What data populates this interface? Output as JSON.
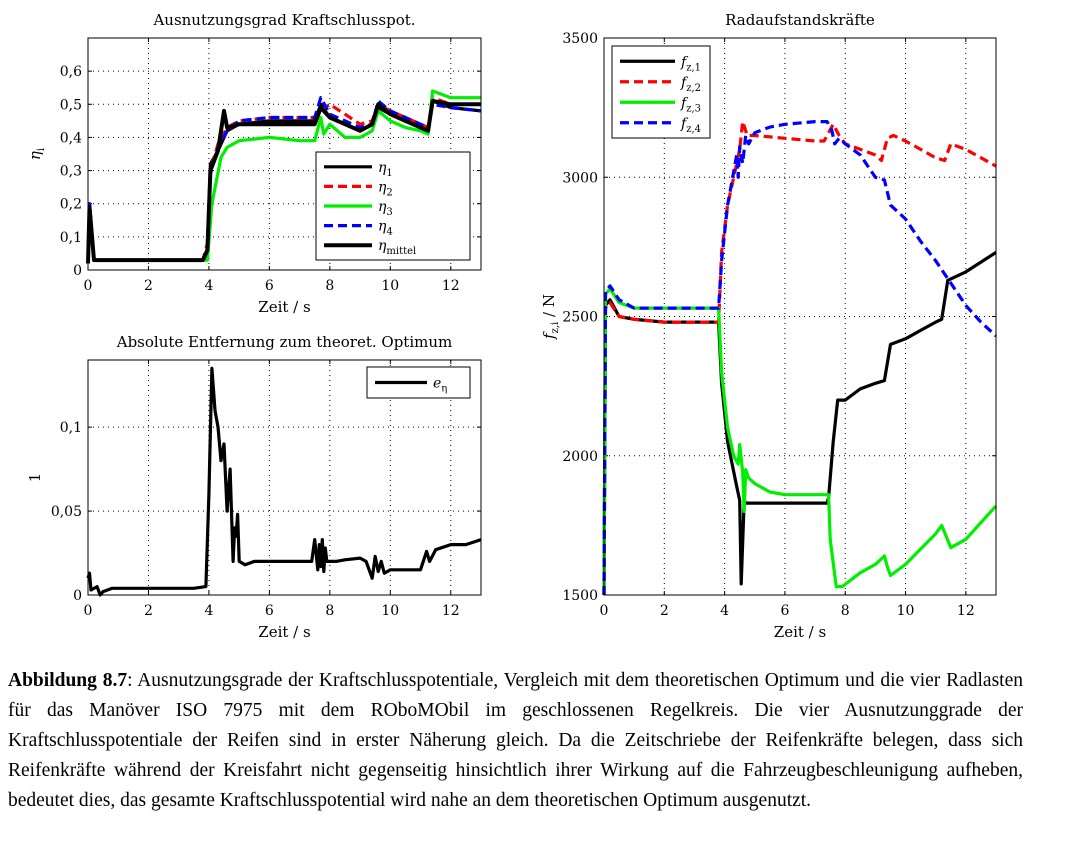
{
  "chart_data": [
    {
      "id": "eta",
      "type": "line",
      "title": "Ausnutzungsgrad Kraftschlusspot.",
      "xlabel": "Zeit / s",
      "ylabel": "η_i",
      "xlim": [
        0,
        13
      ],
      "ylim": [
        0,
        0.7
      ],
      "xticks": [
        0,
        2,
        4,
        6,
        8,
        10,
        12
      ],
      "xtick_labels": [
        "0",
        "2",
        "4",
        "6",
        "8",
        "10",
        "12"
      ],
      "yticks": [
        0,
        0.1,
        0.2,
        0.3,
        0.4,
        0.5,
        0.6
      ],
      "ytick_labels": [
        "0",
        "0,1",
        "0,2",
        "0,3",
        "0,4",
        "0,5",
        "0,6"
      ],
      "grid": true,
      "legend_position": "bottom-right",
      "series": [
        {
          "name": "η1",
          "sym": "η",
          "sub": "1",
          "color": "#000000",
          "dash": "solid",
          "x": [
            0,
            0.05,
            0.2,
            0.5,
            1,
            2,
            3,
            3.8,
            3.95,
            4.05,
            4.3,
            4.6,
            5,
            6,
            7,
            7.5,
            7.7,
            8,
            8.5,
            9,
            9.4,
            9.6,
            10,
            10.5,
            11,
            11.25,
            11.4,
            12,
            13
          ],
          "y": [
            0.02,
            0.2,
            0.03,
            0.03,
            0.03,
            0.03,
            0.03,
            0.03,
            0.05,
            0.32,
            0.36,
            0.42,
            0.44,
            0.45,
            0.45,
            0.45,
            0.5,
            0.46,
            0.44,
            0.42,
            0.44,
            0.49,
            0.47,
            0.45,
            0.43,
            0.42,
            0.51,
            0.49,
            0.48
          ]
        },
        {
          "name": "η2",
          "sym": "η",
          "sub": "2",
          "color": "#ff0000",
          "dash": "dashed",
          "x": [
            0,
            0.05,
            0.2,
            0.5,
            1,
            2,
            3,
            3.8,
            3.95,
            4.05,
            4.3,
            4.6,
            5,
            6,
            7,
            7.5,
            7.7,
            8,
            8.5,
            9,
            9.4,
            9.6,
            10,
            10.5,
            11,
            11.25,
            11.4,
            12,
            13
          ],
          "y": [
            0.02,
            0.18,
            0.03,
            0.03,
            0.03,
            0.03,
            0.03,
            0.03,
            0.08,
            0.3,
            0.38,
            0.43,
            0.45,
            0.46,
            0.46,
            0.46,
            0.48,
            0.5,
            0.47,
            0.44,
            0.45,
            0.5,
            0.48,
            0.46,
            0.44,
            0.43,
            0.52,
            0.5,
            0.5
          ]
        },
        {
          "name": "η3",
          "sym": "η",
          "sub": "3",
          "color": "#00ee00",
          "dash": "solid",
          "x": [
            0,
            0.05,
            0.2,
            0.5,
            1,
            2,
            3,
            3.8,
            3.95,
            4.1,
            4.4,
            4.6,
            5,
            6,
            7,
            7.5,
            7.7,
            7.8,
            8,
            8.5,
            9,
            9.4,
            9.6,
            10,
            10.5,
            11,
            11.25,
            11.4,
            12,
            13
          ],
          "y": [
            0.02,
            0.17,
            0.03,
            0.03,
            0.03,
            0.03,
            0.03,
            0.03,
            0.03,
            0.2,
            0.34,
            0.37,
            0.39,
            0.4,
            0.39,
            0.39,
            0.46,
            0.41,
            0.44,
            0.4,
            0.4,
            0.42,
            0.48,
            0.45,
            0.43,
            0.42,
            0.41,
            0.54,
            0.52,
            0.52
          ]
        },
        {
          "name": "η4",
          "sym": "η",
          "sub": "4",
          "color": "#0000ff",
          "dash": "dashed",
          "x": [
            0,
            0.05,
            0.2,
            0.5,
            1,
            2,
            3,
            3.8,
            3.95,
            4.05,
            4.3,
            4.6,
            5,
            6,
            7,
            7.5,
            7.7,
            8,
            8.5,
            9,
            9.4,
            9.6,
            10,
            10.5,
            11,
            11.25,
            11.4,
            12,
            13
          ],
          "y": [
            0.02,
            0.2,
            0.03,
            0.03,
            0.03,
            0.03,
            0.03,
            0.03,
            0.06,
            0.29,
            0.37,
            0.42,
            0.45,
            0.46,
            0.46,
            0.46,
            0.52,
            0.47,
            0.45,
            0.43,
            0.44,
            0.51,
            0.48,
            0.46,
            0.44,
            0.43,
            0.5,
            0.49,
            0.48
          ]
        },
        {
          "name": "ηmittel",
          "sym": "η",
          "sub": "mittel",
          "color": "#000000",
          "dash": "solid",
          "bold": true,
          "x": [
            0,
            0.05,
            0.2,
            0.5,
            1,
            2,
            3,
            3.8,
            3.95,
            4.05,
            4.3,
            4.5,
            4.6,
            5,
            6,
            7,
            7.5,
            7.7,
            8,
            8.5,
            9,
            9.4,
            9.6,
            10,
            10.5,
            11,
            11.25,
            11.4,
            12,
            13
          ],
          "y": [
            0.02,
            0.19,
            0.03,
            0.03,
            0.03,
            0.03,
            0.03,
            0.03,
            0.06,
            0.3,
            0.36,
            0.48,
            0.43,
            0.44,
            0.44,
            0.44,
            0.44,
            0.49,
            0.46,
            0.44,
            0.42,
            0.44,
            0.5,
            0.47,
            0.45,
            0.43,
            0.42,
            0.51,
            0.5,
            0.5
          ]
        }
      ]
    },
    {
      "id": "err",
      "type": "line",
      "title": "Absolute Entfernung zum theoret. Optimum",
      "xlabel": "Zeit / s",
      "ylabel": "1",
      "xlim": [
        0,
        13
      ],
      "ylim": [
        0,
        0.14
      ],
      "xticks": [
        0,
        2,
        4,
        6,
        8,
        10,
        12
      ],
      "xtick_labels": [
        "0",
        "2",
        "4",
        "6",
        "8",
        "10",
        "12"
      ],
      "yticks": [
        0,
        0.05,
        0.1
      ],
      "ytick_labels": [
        "0",
        "0,05",
        "0,1"
      ],
      "grid": true,
      "legend_position": "top-right",
      "series": [
        {
          "name": "eη",
          "sym": "e",
          "sub": "η",
          "color": "#000000",
          "dash": "solid",
          "x": [
            0,
            0.05,
            0.1,
            0.3,
            0.4,
            0.5,
            0.8,
            1.5,
            2.5,
            3.5,
            3.9,
            4.0,
            4.1,
            4.2,
            4.3,
            4.4,
            4.5,
            4.6,
            4.7,
            4.8,
            4.85,
            4.9,
            4.95,
            5.0,
            5.2,
            5.5,
            6,
            6.5,
            7,
            7.4,
            7.5,
            7.6,
            7.65,
            7.7,
            7.75,
            7.8,
            7.85,
            7.9,
            8.0,
            8.2,
            8.5,
            9.0,
            9.2,
            9.4,
            9.5,
            9.6,
            9.7,
            9.8,
            10.0,
            10.5,
            11.0,
            11.2,
            11.3,
            11.5,
            12,
            12.5,
            13
          ],
          "y": [
            0.01,
            0.013,
            0.003,
            0.005,
            0,
            0.002,
            0.004,
            0.004,
            0.004,
            0.004,
            0.005,
            0.06,
            0.135,
            0.11,
            0.1,
            0.08,
            0.09,
            0.05,
            0.075,
            0.02,
            0.04,
            0.035,
            0.048,
            0.02,
            0.018,
            0.02,
            0.02,
            0.02,
            0.02,
            0.02,
            0.033,
            0.015,
            0.03,
            0.017,
            0.033,
            0.014,
            0.028,
            0.02,
            0.02,
            0.02,
            0.021,
            0.022,
            0.02,
            0.01,
            0.023,
            0.014,
            0.02,
            0.013,
            0.015,
            0.015,
            0.015,
            0.026,
            0.02,
            0.027,
            0.03,
            0.03,
            0.033
          ]
        }
      ]
    },
    {
      "id": "fz",
      "type": "line",
      "title": "Radaufstandskräfte",
      "xlabel": "Zeit / s",
      "ylabel": "f_z,i / N",
      "xlim": [
        0,
        13
      ],
      "ylim": [
        1500,
        3500
      ],
      "xticks": [
        0,
        2,
        4,
        6,
        8,
        10,
        12
      ],
      "xtick_labels": [
        "0",
        "2",
        "4",
        "6",
        "8",
        "10",
        "12"
      ],
      "yticks": [
        1500,
        2000,
        2500,
        3000,
        3500
      ],
      "ytick_labels": [
        "1500",
        "2000",
        "2500",
        "3000",
        "3500"
      ],
      "grid": true,
      "legend_position": "top-left",
      "series": [
        {
          "name": "fz,1",
          "sym": "f",
          "sub": "z,1",
          "color": "#000000",
          "dash": "solid",
          "x": [
            0,
            0.05,
            0.2,
            0.5,
            1,
            2,
            3,
            3.8,
            3.9,
            4.1,
            4.4,
            4.5,
            4.55,
            4.65,
            4.7,
            5,
            6,
            7,
            7.4,
            7.45,
            7.6,
            7.75,
            8,
            8.5,
            9.0,
            9.3,
            9.5,
            10,
            10.5,
            11,
            11.2,
            11.4,
            12,
            13
          ],
          "y": [
            1500,
            2540,
            2560,
            2500,
            2490,
            2480,
            2480,
            2480,
            2260,
            2050,
            1890,
            1840,
            1540,
            1840,
            1830,
            1830,
            1830,
            1830,
            1830,
            1850,
            2050,
            2200,
            2200,
            2240,
            2260,
            2270,
            2400,
            2420,
            2450,
            2480,
            2490,
            2630,
            2660,
            2730
          ]
        },
        {
          "name": "fz,2",
          "sym": "f",
          "sub": "z,2",
          "color": "#ff0000",
          "dash": "dashed",
          "x": [
            0,
            0.05,
            0.2,
            0.5,
            1,
            2,
            3,
            3.8,
            3.9,
            4.1,
            4.3,
            4.5,
            4.6,
            4.75,
            5,
            6,
            7,
            7.3,
            7.6,
            7.8,
            8,
            8.5,
            9.0,
            9.2,
            9.4,
            9.6,
            10,
            10.5,
            11,
            11.3,
            11.5,
            12,
            13
          ],
          "y": [
            1500,
            2530,
            2550,
            2500,
            2490,
            2480,
            2480,
            2480,
            2730,
            2900,
            3000,
            3100,
            3200,
            3150,
            3150,
            3140,
            3130,
            3130,
            3190,
            3150,
            3120,
            3100,
            3080,
            3060,
            3140,
            3150,
            3130,
            3100,
            3070,
            3060,
            3120,
            3100,
            3040
          ]
        },
        {
          "name": "fz,3",
          "sym": "f",
          "sub": "z,3",
          "color": "#00ee00",
          "dash": "solid",
          "x": [
            0,
            0.05,
            0.2,
            0.5,
            1,
            2,
            3,
            3.8,
            3.9,
            4.1,
            4.3,
            4.45,
            4.5,
            4.6,
            4.65,
            4.7,
            4.8,
            5,
            5.5,
            6,
            7,
            7.3,
            7.45,
            7.5,
            7.7,
            7.9,
            8.5,
            9.0,
            9.3,
            9.4,
            9.5,
            10,
            11,
            11.2,
            11.5,
            12,
            13
          ],
          "y": [
            1500,
            2580,
            2600,
            2550,
            2530,
            2530,
            2530,
            2530,
            2300,
            2100,
            2000,
            1970,
            2040,
            1940,
            1800,
            1950,
            1920,
            1900,
            1870,
            1860,
            1860,
            1860,
            1860,
            1700,
            1530,
            1530,
            1580,
            1610,
            1640,
            1600,
            1570,
            1610,
            1720,
            1750,
            1670,
            1700,
            1820
          ]
        },
        {
          "name": "fz,4",
          "sym": "f",
          "sub": "z,4",
          "color": "#0000ff",
          "dash": "dashed",
          "x": [
            0,
            0.05,
            0.2,
            0.5,
            1,
            2,
            3,
            3.8,
            3.9,
            4.1,
            4.3,
            4.4,
            4.45,
            4.5,
            4.6,
            4.7,
            4.8,
            5,
            5.5,
            6,
            7,
            7.4,
            7.55,
            7.65,
            7.8,
            8,
            8.5,
            9.0,
            9.3,
            9.5,
            10,
            10.5,
            11,
            11.5,
            12,
            12.5,
            13
          ],
          "y": [
            1500,
            2590,
            2610,
            2560,
            2530,
            2530,
            2530,
            2530,
            2700,
            2900,
            3020,
            3080,
            3000,
            3110,
            3050,
            3150,
            3120,
            3160,
            3180,
            3190,
            3200,
            3200,
            3170,
            3120,
            3140,
            3120,
            3080,
            3000,
            2990,
            2900,
            2850,
            2770,
            2700,
            2620,
            2540,
            2480,
            2430
          ]
        }
      ]
    }
  ],
  "caption": {
    "label": "Abbildung 8.7",
    "text": ": Ausnutzungsgrade der Kraftschlusspotentiale, Vergleich mit dem theoretischen Optimum und die vier Radlasten für das Manöver ISO 7975 mit dem ROboMObil im geschlossenen Regelkreis. Die vier Ausnutzunggrade der Kraftschlusspotentiale der Reifen sind in erster Näherung gleich. Da die Zeitschriebe der Reifenkräfte belegen, dass sich Reifenkräfte während der Kreisfahrt nicht gegenseitig hinsichtlich ihrer Wirkung auf die Fahrzeugbeschleunigung aufheben, bedeutet dies, das gesamte Kraftschlusspotential wird nahe an dem theoretischen Optimum ausgenutzt."
  }
}
